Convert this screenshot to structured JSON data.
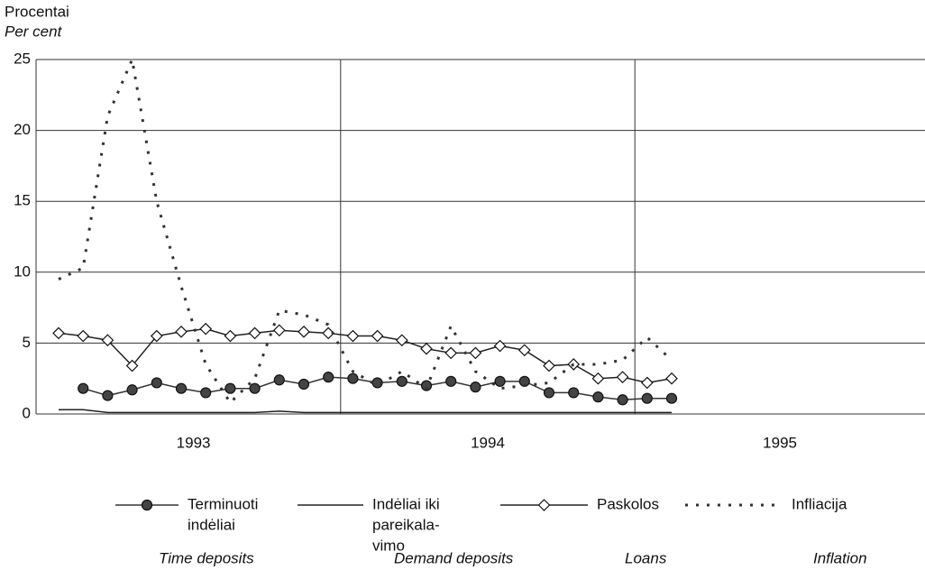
{
  "chart_data": {
    "type": "line",
    "y_title": [
      "Procentai",
      "Per cent"
    ],
    "years": [
      "1993",
      "1994",
      "1995"
    ],
    "ylim": [
      0,
      25
    ],
    "yticks": [
      0,
      5,
      10,
      15,
      20,
      25
    ],
    "grid": true,
    "series": [
      {
        "name": [
          "Terminuoti",
          "indėliai"
        ],
        "name_en": "Time deposits",
        "color": "#333333",
        "marker": "circle",
        "values": [
          null,
          1.8,
          1.3,
          1.7,
          2.2,
          1.8,
          1.5,
          1.8,
          1.8,
          2.4,
          2.1,
          2.6,
          2.5,
          2.2,
          2.3,
          2.0,
          2.3,
          1.9,
          2.3,
          2.3,
          1.5,
          1.5,
          1.2,
          1.0,
          1.1,
          1.1
        ]
      },
      {
        "name": [
          "Indėliai iki",
          "pareikala-",
          "vimo"
        ],
        "name_en": "Demand deposits",
        "color": "#222222",
        "marker": "none",
        "values": [
          0.3,
          0.3,
          0.1,
          0.1,
          0.1,
          0.1,
          0.1,
          0.1,
          0.1,
          0.2,
          0.1,
          0.1,
          0.1,
          0.1,
          0.1,
          0.1,
          0.1,
          0.1,
          0.1,
          0.1,
          0.1,
          0.1,
          0.1,
          0.1,
          0.1,
          0.1
        ]
      },
      {
        "name": [
          "Paskolos"
        ],
        "name_en": "Loans",
        "color": "#222222",
        "marker": "diamond",
        "values": [
          5.7,
          5.5,
          5.2,
          3.4,
          5.5,
          5.8,
          6.0,
          5.5,
          5.7,
          5.9,
          5.8,
          5.7,
          5.5,
          5.5,
          5.2,
          4.6,
          4.3,
          4.3,
          4.8,
          4.5,
          3.4,
          3.5,
          2.5,
          2.6,
          2.2,
          2.5
        ]
      },
      {
        "name": [
          "Infliacija"
        ],
        "name_en": "Inflation",
        "color": "#333333",
        "marker": "none",
        "dashed": true,
        "values": [
          9.5,
          10.3,
          21,
          25,
          15,
          9,
          3.5,
          0.8,
          2.5,
          7.3,
          7.0,
          6.3,
          3.0,
          2.0,
          3.0,
          1.8,
          6.2,
          3.0,
          1.8,
          2.0,
          2.2,
          3.5,
          3.5,
          3.8,
          5.4,
          3.8
        ]
      }
    ]
  }
}
